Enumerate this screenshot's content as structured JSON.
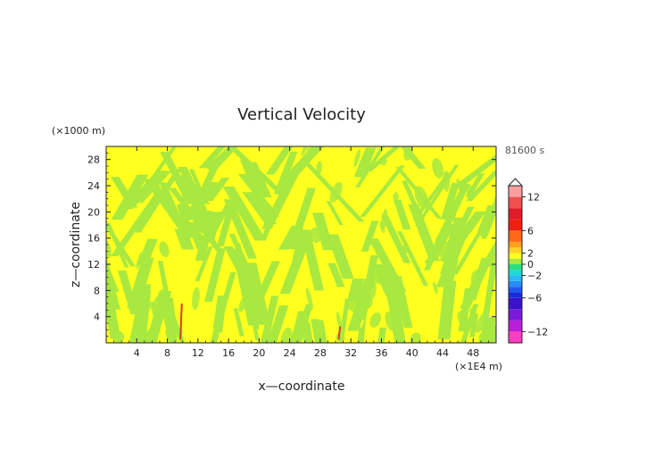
{
  "chart_data": {
    "type": "heatmap",
    "title": "Vertical Velocity",
    "time_label": "81600 s",
    "xlabel": "x—coordinate",
    "ylabel": "z—coordinate",
    "x_unit": "(×1E4 m)",
    "y_unit": "(×1000 m)",
    "xlim": [
      0,
      51
    ],
    "ylim": [
      0,
      30
    ],
    "x_ticks": [
      4,
      8,
      12,
      16,
      20,
      24,
      28,
      32,
      36,
      40,
      44,
      48
    ],
    "y_ticks": [
      4,
      8,
      12,
      16,
      20,
      24,
      28
    ],
    "colorbar": {
      "min": -14,
      "max": 14,
      "labels": [
        12,
        6,
        2,
        0,
        -2,
        -6,
        -12
      ],
      "label_texts": [
        "12",
        "6",
        "2",
        "0",
        "−2",
        "−6",
        "−12"
      ],
      "levels": [
        {
          "from": -14,
          "to": -12,
          "color": "#ff3fbf"
        },
        {
          "from": -12,
          "to": -10,
          "color": "#b81fd8"
        },
        {
          "from": -10,
          "to": -8,
          "color": "#7a1ad8"
        },
        {
          "from": -8,
          "to": -6,
          "color": "#3a12c8"
        },
        {
          "from": -6,
          "to": -5,
          "color": "#1a2ad8"
        },
        {
          "from": -5,
          "to": -4,
          "color": "#1e5af0"
        },
        {
          "from": -4,
          "to": -3,
          "color": "#2a8cf8"
        },
        {
          "from": -3,
          "to": -2,
          "color": "#2ab8f8"
        },
        {
          "from": -2,
          "to": -1,
          "color": "#20d8d8"
        },
        {
          "from": -1,
          "to": 0,
          "color": "#28e080"
        },
        {
          "from": 0,
          "to": 1,
          "color": "#a8e840"
        },
        {
          "from": 1,
          "to": 2,
          "color": "#ffff20"
        },
        {
          "from": 2,
          "to": 3,
          "color": "#ffd028"
        },
        {
          "from": 3,
          "to": 4,
          "color": "#ffa020"
        },
        {
          "from": 4,
          "to": 6,
          "color": "#ff6818"
        },
        {
          "from": 6,
          "to": 8,
          "color": "#f02010"
        },
        {
          "from": 8,
          "to": 10,
          "color": "#e01a28"
        },
        {
          "from": 10,
          "to": 12,
          "color": "#f05050"
        },
        {
          "from": 12,
          "to": 14,
          "color": "#f8a0a0"
        }
      ]
    },
    "field": {
      "background_color": "#ffff20",
      "band_color": "#a8e840",
      "description_colors": [
        "#a8e840",
        "#ffff20"
      ],
      "features": [
        {
          "x": 9.8,
          "z_from": 0.5,
          "z_to": 6.0,
          "color": "#d8401a"
        },
        {
          "x": 30.5,
          "z_from": 0.5,
          "z_to": 2.5,
          "color": "#d8401a"
        }
      ]
    }
  }
}
